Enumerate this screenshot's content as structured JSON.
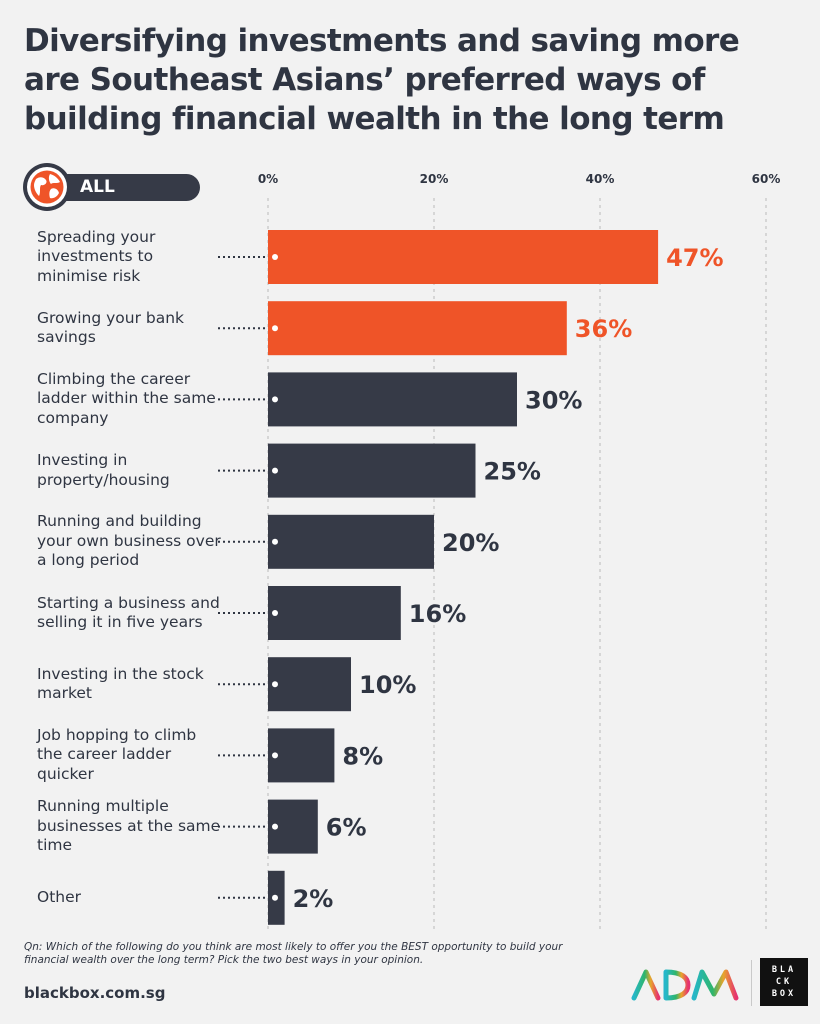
{
  "title": "Diversifying investments and saving more are Southeast Asians’ preferred ways of building financial wealth in the long term",
  "filter_label": "ALL",
  "footnote": "Qn: Which of the following do you think are most likely to offer you the BEST opportunity to build your financial wealth over the long term? Pick the two best ways in your opinion.",
  "site": "blackbox.com.sg",
  "logos": {
    "blackbox_lines": [
      "BLA",
      "CK",
      "BOX"
    ]
  },
  "colors": {
    "highlight": "#ef5428",
    "bar": "#363a47",
    "text": "#2f3542",
    "grid": "#c4c4c4"
  },
  "chart_data": {
    "type": "bar",
    "orientation": "horizontal",
    "title": "Diversifying investments and saving more are Southeast Asians’ preferred ways of building financial wealth in the long term",
    "xlim": [
      0,
      60
    ],
    "ticks": [
      0,
      20,
      40,
      60
    ],
    "tick_labels": [
      "0%",
      "20%",
      "40%",
      "60%"
    ],
    "grid": true,
    "categories": [
      "Spreading your investments to minimise risk",
      "Growing your bank savings",
      "Climbing the career ladder within the same company",
      "Investing in property/housing",
      "Running and building your own business over a long period",
      "Starting a business and selling it in five years",
      "Investing in the stock market",
      "Job hopping to climb the career ladder quicker",
      "Running multiple businesses at the same time",
      "Other"
    ],
    "values": [
      47,
      36,
      30,
      25,
      20,
      16,
      10,
      8,
      6,
      2
    ],
    "value_labels": [
      "47%",
      "36%",
      "30%",
      "25%",
      "20%",
      "16%",
      "10%",
      "8%",
      "6%",
      "2%"
    ],
    "highlighted": [
      true,
      true,
      false,
      false,
      false,
      false,
      false,
      false,
      false,
      false
    ]
  }
}
